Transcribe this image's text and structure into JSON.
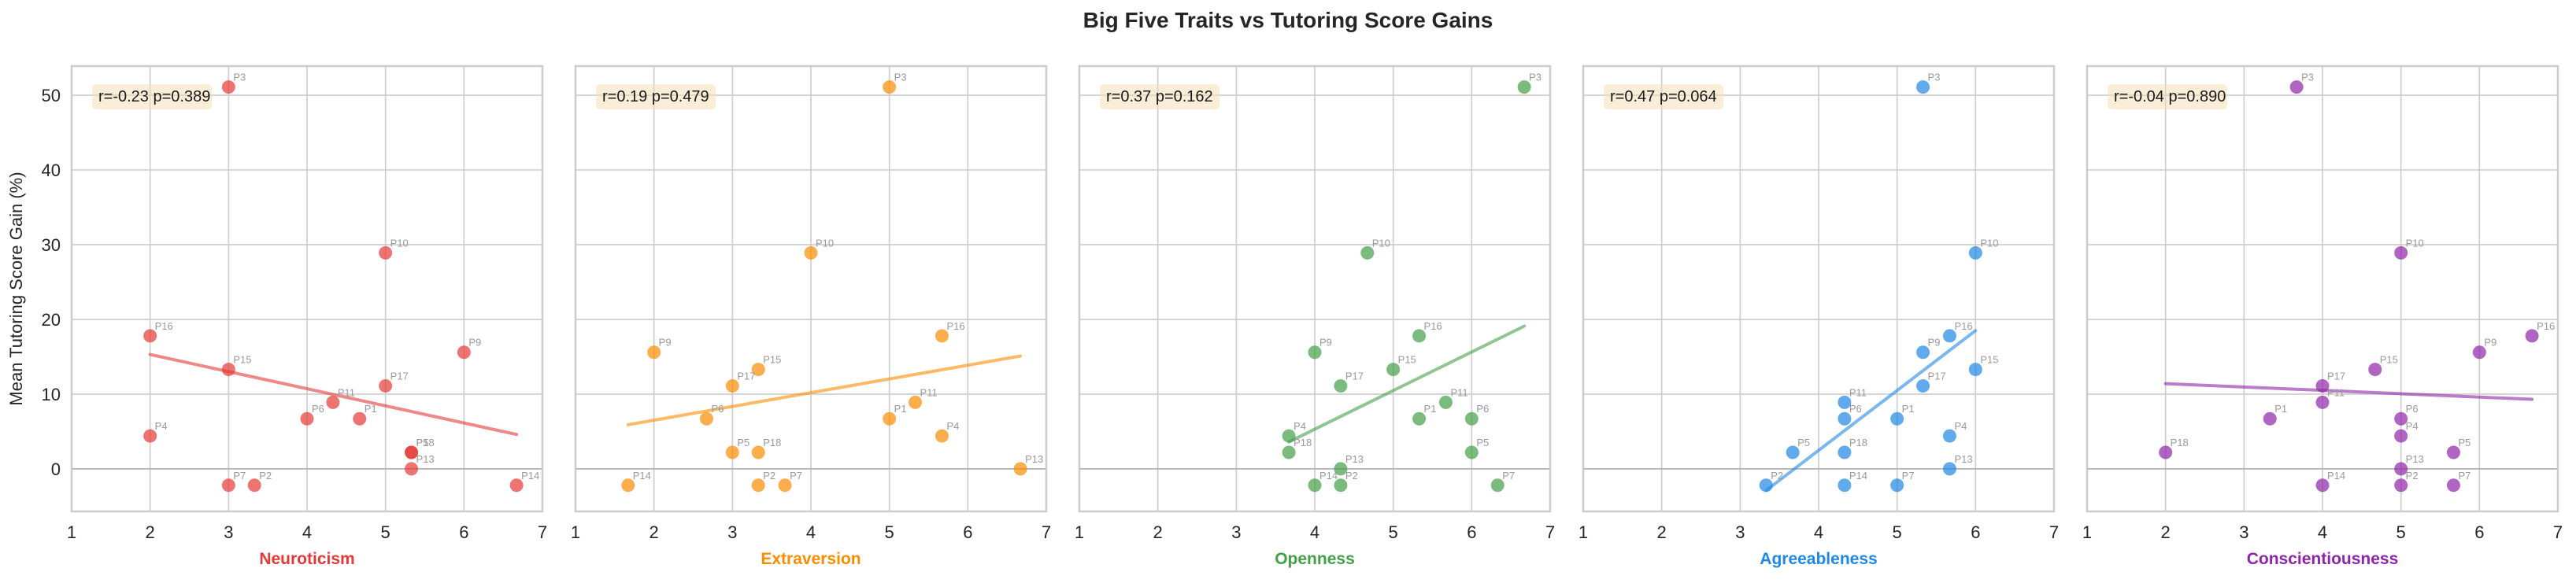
{
  "figure": {
    "title": "Big Five Traits vs Tutoring Score Gains",
    "ylabel": "Mean Tutoring Score Gain (%)"
  },
  "chart_data": [
    {
      "type": "scatter",
      "title": "",
      "xlabel": "Neuroticism",
      "ylabel": "Mean Tutoring Score Gain (%)",
      "color": "#e53935",
      "xlim": [
        1,
        7
      ],
      "ylim": [
        -5.7,
        53.9
      ],
      "xticks": [
        1,
        2,
        3,
        4,
        5,
        6,
        7
      ],
      "yticks": [
        0,
        10,
        20,
        30,
        40,
        50
      ],
      "grid": true,
      "annotation": "r=-0.23 p=0.389",
      "regression": {
        "x": [
          2.0,
          6.67
        ],
        "y": [
          15.3,
          4.6
        ]
      },
      "points": [
        {
          "label": "P1",
          "x": 4.67,
          "y": 6.7
        },
        {
          "label": "P2",
          "x": 3.33,
          "y": -2.2
        },
        {
          "label": "P3",
          "x": 3.0,
          "y": 51.1
        },
        {
          "label": "P4",
          "x": 2.0,
          "y": 4.4
        },
        {
          "label": "P5",
          "x": 5.33,
          "y": 2.2
        },
        {
          "label": "P6",
          "x": 4.0,
          "y": 6.7
        },
        {
          "label": "P7",
          "x": 3.0,
          "y": -2.2
        },
        {
          "label": "P9",
          "x": 6.0,
          "y": 15.6
        },
        {
          "label": "P10",
          "x": 5.0,
          "y": 28.9
        },
        {
          "label": "P11",
          "x": 4.33,
          "y": 8.9
        },
        {
          "label": "P13",
          "x": 5.33,
          "y": 0.0
        },
        {
          "label": "P14",
          "x": 6.67,
          "y": -2.2
        },
        {
          "label": "P15",
          "x": 3.0,
          "y": 13.3
        },
        {
          "label": "P16",
          "x": 2.0,
          "y": 17.8
        },
        {
          "label": "P17",
          "x": 5.0,
          "y": 11.1
        },
        {
          "label": "P18",
          "x": 5.33,
          "y": 2.2
        }
      ]
    },
    {
      "type": "scatter",
      "title": "",
      "xlabel": "Extraversion",
      "ylabel": "",
      "color": "#fb8c00",
      "xlim": [
        1,
        7
      ],
      "ylim": [
        -5.7,
        53.9
      ],
      "xticks": [
        1,
        2,
        3,
        4,
        5,
        6,
        7
      ],
      "yticks": [
        0,
        10,
        20,
        30,
        40,
        50
      ],
      "grid": true,
      "annotation": "r=0.19 p=0.479",
      "regression": {
        "x": [
          1.67,
          6.67
        ],
        "y": [
          5.9,
          15.1
        ]
      },
      "points": [
        {
          "label": "P1",
          "x": 5.0,
          "y": 6.7
        },
        {
          "label": "P2",
          "x": 3.33,
          "y": -2.2
        },
        {
          "label": "P3",
          "x": 5.0,
          "y": 51.1
        },
        {
          "label": "P4",
          "x": 5.67,
          "y": 4.4
        },
        {
          "label": "P5",
          "x": 3.0,
          "y": 2.2
        },
        {
          "label": "P6",
          "x": 2.67,
          "y": 6.7
        },
        {
          "label": "P7",
          "x": 3.67,
          "y": -2.2
        },
        {
          "label": "P9",
          "x": 2.0,
          "y": 15.6
        },
        {
          "label": "P10",
          "x": 4.0,
          "y": 28.9
        },
        {
          "label": "P11",
          "x": 5.33,
          "y": 8.9
        },
        {
          "label": "P13",
          "x": 6.67,
          "y": 0.0
        },
        {
          "label": "P14",
          "x": 1.67,
          "y": -2.2
        },
        {
          "label": "P15",
          "x": 3.33,
          "y": 13.3
        },
        {
          "label": "P16",
          "x": 5.67,
          "y": 17.8
        },
        {
          "label": "P17",
          "x": 3.0,
          "y": 11.1
        },
        {
          "label": "P18",
          "x": 3.33,
          "y": 2.2
        }
      ]
    },
    {
      "type": "scatter",
      "title": "",
      "xlabel": "Openness",
      "ylabel": "",
      "color": "#43a047",
      "xlim": [
        1,
        7
      ],
      "ylim": [
        -5.7,
        53.9
      ],
      "xticks": [
        1,
        2,
        3,
        4,
        5,
        6,
        7
      ],
      "yticks": [
        0,
        10,
        20,
        30,
        40,
        50
      ],
      "grid": true,
      "annotation": "r=0.37 p=0.162",
      "regression": {
        "x": [
          3.67,
          6.67
        ],
        "y": [
          3.6,
          19.1
        ]
      },
      "points": [
        {
          "label": "P1",
          "x": 5.33,
          "y": 6.7
        },
        {
          "label": "P2",
          "x": 4.33,
          "y": -2.2
        },
        {
          "label": "P3",
          "x": 6.67,
          "y": 51.1
        },
        {
          "label": "P4",
          "x": 3.67,
          "y": 4.4
        },
        {
          "label": "P5",
          "x": 6.0,
          "y": 2.2
        },
        {
          "label": "P6",
          "x": 6.0,
          "y": 6.7
        },
        {
          "label": "P7",
          "x": 6.33,
          "y": -2.2
        },
        {
          "label": "P9",
          "x": 4.0,
          "y": 15.6
        },
        {
          "label": "P10",
          "x": 4.67,
          "y": 28.9
        },
        {
          "label": "P11",
          "x": 5.67,
          "y": 8.9
        },
        {
          "label": "P13",
          "x": 4.33,
          "y": 0.0
        },
        {
          "label": "P14",
          "x": 4.0,
          "y": -2.2
        },
        {
          "label": "P15",
          "x": 5.0,
          "y": 13.3
        },
        {
          "label": "P16",
          "x": 5.33,
          "y": 17.8
        },
        {
          "label": "P17",
          "x": 4.33,
          "y": 11.1
        },
        {
          "label": "P18",
          "x": 3.67,
          "y": 2.2
        }
      ]
    },
    {
      "type": "scatter",
      "title": "",
      "xlabel": "Agreeableness",
      "ylabel": "",
      "color": "#1e88e5",
      "xlim": [
        1,
        7
      ],
      "ylim": [
        -5.7,
        53.9
      ],
      "xticks": [
        1,
        2,
        3,
        4,
        5,
        6,
        7
      ],
      "yticks": [
        0,
        10,
        20,
        30,
        40,
        50
      ],
      "grid": true,
      "annotation": "r=0.47 p=0.064",
      "regression": {
        "x": [
          3.33,
          6.0
        ],
        "y": [
          -2.9,
          18.5
        ]
      },
      "points": [
        {
          "label": "P1",
          "x": 5.0,
          "y": 6.7
        },
        {
          "label": "P2",
          "x": 3.33,
          "y": -2.2
        },
        {
          "label": "P3",
          "x": 5.33,
          "y": 51.1
        },
        {
          "label": "P4",
          "x": 5.67,
          "y": 4.4
        },
        {
          "label": "P5",
          "x": 3.67,
          "y": 2.2
        },
        {
          "label": "P6",
          "x": 4.33,
          "y": 6.7
        },
        {
          "label": "P7",
          "x": 5.0,
          "y": -2.2
        },
        {
          "label": "P9",
          "x": 5.33,
          "y": 15.6
        },
        {
          "label": "P10",
          "x": 6.0,
          "y": 28.9
        },
        {
          "label": "P11",
          "x": 4.33,
          "y": 8.9
        },
        {
          "label": "P13",
          "x": 5.67,
          "y": 0.0
        },
        {
          "label": "P14",
          "x": 4.33,
          "y": -2.2
        },
        {
          "label": "P15",
          "x": 6.0,
          "y": 13.3
        },
        {
          "label": "P16",
          "x": 5.67,
          "y": 17.8
        },
        {
          "label": "P17",
          "x": 5.33,
          "y": 11.1
        },
        {
          "label": "P18",
          "x": 4.33,
          "y": 2.2
        }
      ]
    },
    {
      "type": "scatter",
      "title": "",
      "xlabel": "Conscientiousness",
      "ylabel": "",
      "color": "#8e24aa",
      "xlim": [
        1,
        7
      ],
      "ylim": [
        -5.7,
        53.9
      ],
      "xticks": [
        1,
        2,
        3,
        4,
        5,
        6,
        7
      ],
      "yticks": [
        0,
        10,
        20,
        30,
        40,
        50
      ],
      "grid": true,
      "annotation": "r=-0.04 p=0.890",
      "regression": {
        "x": [
          2.0,
          6.67
        ],
        "y": [
          11.4,
          9.3
        ]
      },
      "points": [
        {
          "label": "P1",
          "x": 3.33,
          "y": 6.7
        },
        {
          "label": "P2",
          "x": 5.0,
          "y": -2.2
        },
        {
          "label": "P3",
          "x": 3.67,
          "y": 51.1
        },
        {
          "label": "P4",
          "x": 5.0,
          "y": 4.4
        },
        {
          "label": "P5",
          "x": 5.67,
          "y": 2.2
        },
        {
          "label": "P6",
          "x": 5.0,
          "y": 6.7
        },
        {
          "label": "P7",
          "x": 5.67,
          "y": -2.2
        },
        {
          "label": "P9",
          "x": 6.0,
          "y": 15.6
        },
        {
          "label": "P10",
          "x": 5.0,
          "y": 28.9
        },
        {
          "label": "P11",
          "x": 4.0,
          "y": 8.9
        },
        {
          "label": "P13",
          "x": 5.0,
          "y": 0.0
        },
        {
          "label": "P14",
          "x": 4.0,
          "y": -2.2
        },
        {
          "label": "P15",
          "x": 4.67,
          "y": 13.3
        },
        {
          "label": "P16",
          "x": 6.67,
          "y": 17.8
        },
        {
          "label": "P17",
          "x": 4.0,
          "y": 11.1
        },
        {
          "label": "P18",
          "x": 2.0,
          "y": 2.2
        }
      ]
    }
  ]
}
